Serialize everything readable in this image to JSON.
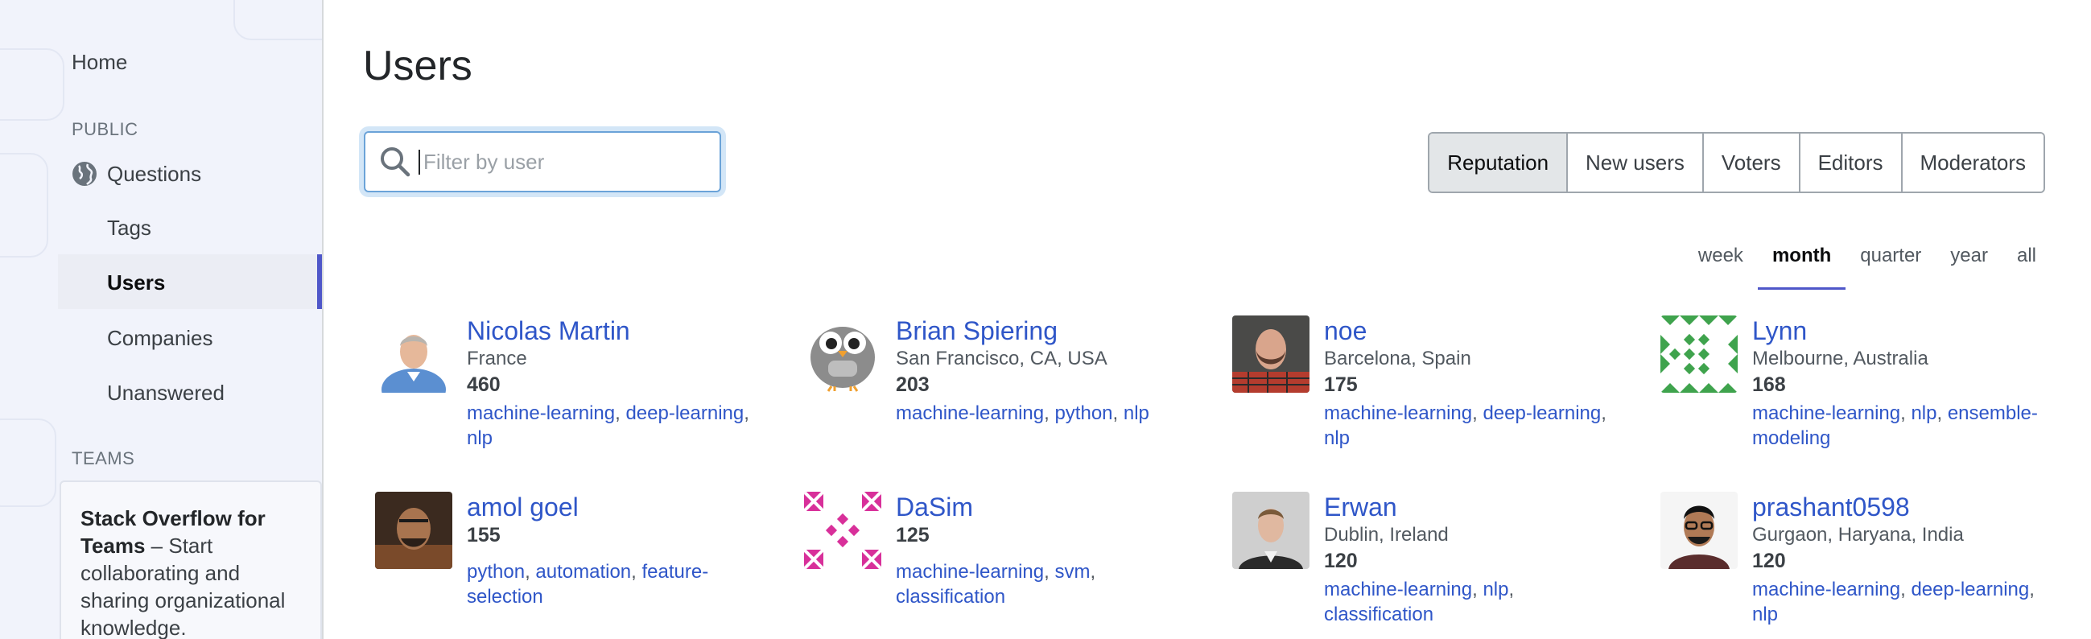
{
  "sidebar": {
    "home": "Home",
    "public_heading": "PUBLIC",
    "questions": "Questions",
    "tags": "Tags",
    "users": "Users",
    "companies": "Companies",
    "unanswered": "Unanswered",
    "teams_heading": "TEAMS",
    "teams_title": "Stack Overflow for Teams",
    "teams_text": " – Start collaborating and sharing organizational knowledge."
  },
  "main": {
    "title": "Users",
    "search": {
      "placeholder": "Filter by user",
      "value": ""
    },
    "tabs": [
      "Reputation",
      "New users",
      "Voters",
      "Editors",
      "Moderators"
    ],
    "active_tab": "Reputation",
    "periods": [
      "week",
      "month",
      "quarter",
      "year",
      "all"
    ],
    "active_period": "month"
  },
  "users": [
    {
      "name": "Nicolas Martin",
      "location": "France",
      "reputation": "460",
      "tags": [
        "machine-learning",
        "deep-learning",
        "nlp"
      ]
    },
    {
      "name": "Brian Spiering",
      "location": "San Francisco, CA, USA",
      "reputation": "203",
      "tags": [
        "machine-learning",
        "python",
        "nlp"
      ]
    },
    {
      "name": "noe",
      "location": "Barcelona, Spain",
      "reputation": "175",
      "tags": [
        "machine-learning",
        "deep-learning",
        "nlp"
      ]
    },
    {
      "name": "Lynn",
      "location": "Melbourne, Australia",
      "reputation": "168",
      "tags": [
        "machine-learning",
        "nlp",
        "ensemble-modeling"
      ]
    },
    {
      "name": "amol goel",
      "location": "",
      "reputation": "155",
      "tags": [
        "python",
        "automation",
        "feature-selection"
      ]
    },
    {
      "name": "DaSim",
      "location": "",
      "reputation": "125",
      "tags": [
        "machine-learning",
        "svm",
        "classification"
      ]
    },
    {
      "name": "Erwan",
      "location": "Dublin, Ireland",
      "reputation": "120",
      "tags": [
        "machine-learning",
        "nlp",
        "classification"
      ]
    },
    {
      "name": "prashant0598",
      "location": "Gurgaon, Haryana, India",
      "reputation": "120",
      "tags": [
        "machine-learning",
        "deep-learning",
        "nlp"
      ]
    }
  ],
  "colors": {
    "link": "#2f56c8",
    "accent": "#4f57c9",
    "identicon_green": "#3fa34d",
    "identicon_pink": "#d8309a"
  }
}
